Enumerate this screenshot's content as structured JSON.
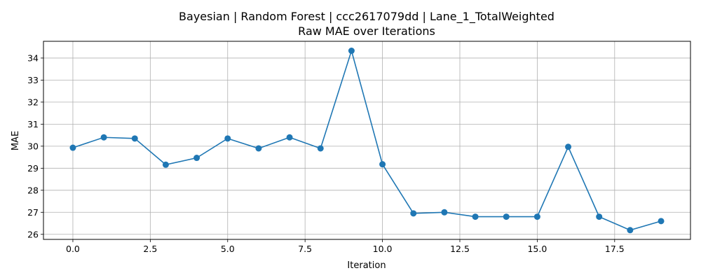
{
  "chart_data": {
    "type": "line",
    "title": "Bayesian | Random Forest | ccc2617079dd | Lane_1_TotalWeighted",
    "subtitle": "Raw MAE over Iterations",
    "xlabel": "Iteration",
    "ylabel": "MAE",
    "xlim": [
      -0.95,
      19.95
    ],
    "ylim": [
      25.77,
      34.76
    ],
    "xticks": [
      0.0,
      2.5,
      5.0,
      7.5,
      10.0,
      12.5,
      15.0,
      17.5
    ],
    "xtick_labels": [
      "0.0",
      "2.5",
      "5.0",
      "7.5",
      "10.0",
      "12.5",
      "15.0",
      "17.5"
    ],
    "yticks": [
      26,
      27,
      28,
      29,
      30,
      31,
      32,
      33,
      34
    ],
    "ytick_labels": [
      "26",
      "27",
      "28",
      "29",
      "30",
      "31",
      "32",
      "33",
      "34"
    ],
    "grid": true,
    "line_color": "#1f77b4",
    "marker": "circle",
    "series": [
      {
        "x": [
          0,
          1,
          2,
          3,
          4,
          5,
          6,
          7,
          8,
          9,
          10,
          11,
          12,
          13,
          14,
          15,
          16,
          17,
          18,
          19
        ],
        "values": [
          29.93,
          30.4,
          30.35,
          29.16,
          29.47,
          30.35,
          29.9,
          30.4,
          29.9,
          34.33,
          29.18,
          26.95,
          27.0,
          26.8,
          26.8,
          26.8,
          29.97,
          26.8,
          26.19,
          26.6
        ]
      }
    ]
  }
}
